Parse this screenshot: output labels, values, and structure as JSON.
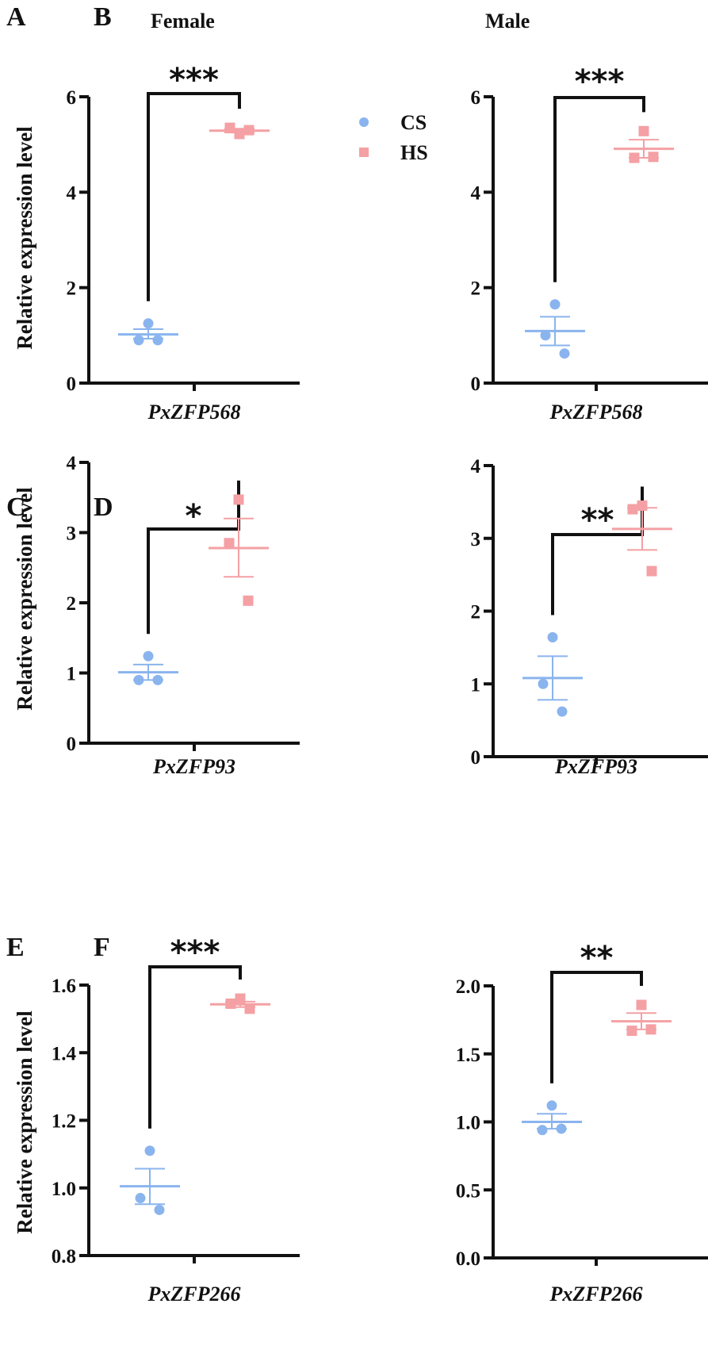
{
  "legend": {
    "items": [
      {
        "label": "CS",
        "marker": "circle",
        "color": "#8ab4ee"
      },
      {
        "label": "HS",
        "marker": "square",
        "color": "#f4a0a4"
      }
    ]
  },
  "chart_data": [
    {
      "panel": "A",
      "title": "Female",
      "type": "scatter",
      "ylabel": "Relative expression level",
      "xlabel": "PxZFP568",
      "ylim": [
        0,
        6
      ],
      "yticks": [
        "0",
        "2",
        "4",
        "6"
      ],
      "ytick_values": [
        0,
        2,
        4,
        6
      ],
      "significance": "***",
      "series": [
        {
          "name": "CS",
          "points": [
            1.25,
            0.9,
            0.9
          ],
          "mean": 1.02,
          "sem_low": 0.93,
          "sem_high": 1.13
        },
        {
          "name": "HS",
          "points": [
            5.22,
            5.35,
            5.3
          ],
          "mean": 5.29,
          "sem_low": 5.25,
          "sem_high": 5.33
        }
      ]
    },
    {
      "panel": "B",
      "title": "Male",
      "type": "scatter",
      "ylabel": "",
      "xlabel": "PxZFP568",
      "ylim": [
        0,
        6
      ],
      "yticks": [
        "0",
        "2",
        "4",
        "6"
      ],
      "ytick_values": [
        0,
        2,
        4,
        6
      ],
      "significance": "***",
      "series": [
        {
          "name": "CS",
          "points": [
            1.65,
            1.0,
            0.62
          ],
          "mean": 1.09,
          "sem_low": 0.79,
          "sem_high": 1.39
        },
        {
          "name": "HS",
          "points": [
            5.28,
            4.72,
            4.74
          ],
          "mean": 4.91,
          "sem_low": 4.72,
          "sem_high": 5.1
        }
      ]
    },
    {
      "panel": "C",
      "title": "",
      "type": "scatter",
      "ylabel": "Relative expression level",
      "xlabel": "PxZFP93",
      "ylim": [
        0,
        4
      ],
      "yticks": [
        "0",
        "1",
        "2",
        "3",
        "4"
      ],
      "ytick_values": [
        0,
        1,
        2,
        3,
        4
      ],
      "significance": "*",
      "series": [
        {
          "name": "CS",
          "points": [
            1.24,
            0.9,
            0.9
          ],
          "mean": 1.01,
          "sem_low": 0.9,
          "sem_high": 1.12
        },
        {
          "name": "HS",
          "points": [
            3.47,
            2.85,
            2.03
          ],
          "mean": 2.78,
          "sem_low": 2.37,
          "sem_high": 3.2
        }
      ]
    },
    {
      "panel": "D",
      "title": "",
      "type": "scatter",
      "ylabel": "",
      "xlabel": "PxZFP93",
      "ylim": [
        0,
        4
      ],
      "yticks": [
        "0",
        "1",
        "2",
        "3",
        "4"
      ],
      "ytick_values": [
        0,
        1,
        2,
        3,
        4
      ],
      "significance": "**",
      "series": [
        {
          "name": "CS",
          "points": [
            1.64,
            1.0,
            0.62
          ],
          "mean": 1.08,
          "sem_low": 0.78,
          "sem_high": 1.38
        },
        {
          "name": "HS",
          "points": [
            3.45,
            3.4,
            2.55
          ],
          "mean": 3.13,
          "sem_low": 2.84,
          "sem_high": 3.42
        }
      ]
    },
    {
      "panel": "E",
      "title": "",
      "type": "scatter",
      "ylabel": "Relative expression level",
      "xlabel": "PxZFP266",
      "ylim": [
        0.8,
        1.6
      ],
      "yticks": [
        "0.8",
        "1.0",
        "1.2",
        "1.4",
        "1.6"
      ],
      "ytick_values": [
        0.8,
        1.0,
        1.2,
        1.4,
        1.6
      ],
      "significance": "***",
      "series": [
        {
          "name": "CS",
          "points": [
            1.11,
            0.97,
            0.935
          ],
          "mean": 1.005,
          "sem_low": 0.952,
          "sem_high": 1.057
        },
        {
          "name": "HS",
          "points": [
            1.56,
            1.545,
            1.53
          ],
          "mean": 1.543,
          "sem_low": 1.535,
          "sem_high": 1.551
        }
      ]
    },
    {
      "panel": "F",
      "title": "",
      "type": "scatter",
      "ylabel": "",
      "xlabel": "PxZFP266",
      "ylim": [
        0.0,
        2.0
      ],
      "yticks": [
        "0.0",
        "0.5",
        "1.0",
        "1.5",
        "2.0"
      ],
      "ytick_values": [
        0,
        0.5,
        1.0,
        1.5,
        2.0
      ],
      "significance": "**",
      "series": [
        {
          "name": "CS",
          "points": [
            1.12,
            0.94,
            0.95
          ],
          "mean": 1.0,
          "sem_low": 0.95,
          "sem_high": 1.06
        },
        {
          "name": "HS",
          "points": [
            1.86,
            1.67,
            1.68
          ],
          "mean": 1.74,
          "sem_low": 1.68,
          "sem_high": 1.8
        }
      ]
    }
  ]
}
